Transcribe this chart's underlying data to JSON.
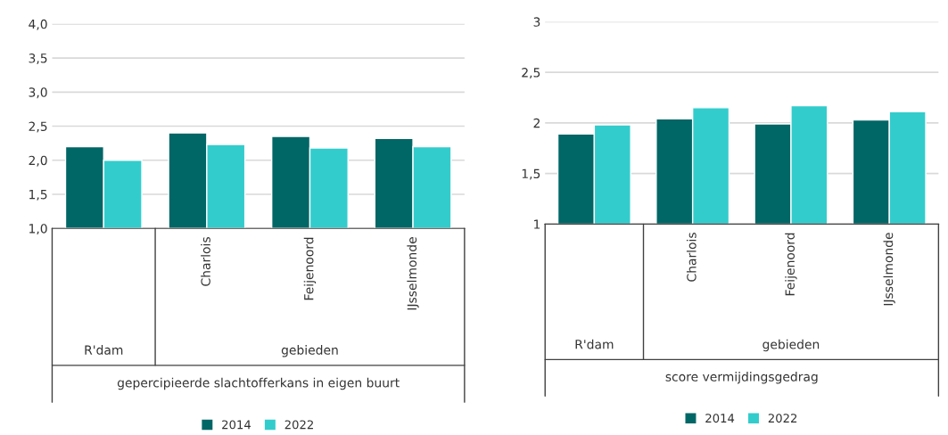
{
  "chart_data": [
    {
      "type": "bar",
      "xlabel": "gepercipieerde slachtofferkans in eigen buurt",
      "categories": [
        null,
        "Charlois",
        "Feijenoord",
        "IJsselmonde"
      ],
      "series": [
        {
          "name": "2014",
          "color": "#006666",
          "values": [
            2.2,
            2.4,
            2.35,
            2.32
          ]
        },
        {
          "name": "2022",
          "color": "#33cccc",
          "values": [
            2.0,
            2.23,
            2.18,
            2.2
          ]
        }
      ],
      "ylim": [
        1.0,
        4.0
      ],
      "yticks": [
        {
          "value": 1.0,
          "label": "1,0"
        },
        {
          "value": 1.5,
          "label": "1,5"
        },
        {
          "value": 2.0,
          "label": "2,0"
        },
        {
          "value": 2.5,
          "label": "2,5"
        },
        {
          "value": 3.0,
          "label": "3,0"
        },
        {
          "value": 3.5,
          "label": "3,5"
        },
        {
          "value": 4.0,
          "label": "4,0"
        }
      ],
      "annotations": [
        "R'dam",
        "gebieden"
      ],
      "grid": "y",
      "legend": "bottom"
    },
    {
      "type": "bar",
      "xlabel": "score vermijdingsgedrag",
      "categories": [
        null,
        "Charlois",
        "Feijenoord",
        "IJsselmonde"
      ],
      "series": [
        {
          "name": "2014",
          "color": "#006666",
          "values": [
            1.89,
            2.04,
            1.99,
            2.03
          ]
        },
        {
          "name": "2022",
          "color": "#33cccc",
          "values": [
            1.98,
            2.15,
            2.17,
            2.11
          ]
        }
      ],
      "ylim": [
        1,
        3
      ],
      "yticks": [
        1,
        {
          "value": 1.5,
          "label": "1,5"
        },
        2,
        {
          "value": 2.5,
          "label": "2,5"
        },
        3
      ],
      "annotations": [
        "R'dam",
        "gebieden"
      ],
      "grid": "y",
      "legend": "bottom"
    }
  ]
}
